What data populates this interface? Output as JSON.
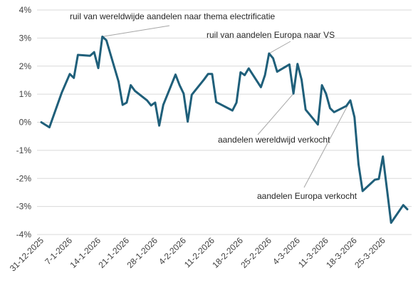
{
  "chart_data": {
    "type": "line",
    "title": "",
    "xlabel": "",
    "ylabel": "",
    "ylim": [
      -4,
      4
    ],
    "y_ticks": [
      4,
      3,
      2,
      1,
      0,
      -1,
      -2,
      -3,
      -4
    ],
    "y_tick_labels": [
      "4%",
      "3%",
      "2%",
      "1%",
      "0%",
      "-1%",
      "-2%",
      "-3%",
      "-4%"
    ],
    "x_ticks": [
      "31-12-2025",
      "7-1-2026",
      "14-1-2026",
      "21-1-2026",
      "28-1-2026",
      "4-2-2026",
      "11-2-2026",
      "18-2-2026",
      "25-2-2026",
      "4-3-2026",
      "11-3-2026",
      "18-3-2026",
      "25-3-2026"
    ],
    "grid": "horizontal",
    "line_color": "#1f5f7a",
    "series": [
      {
        "points": [
          [
            "2025-12-31",
            0.0
          ],
          [
            "2026-01-02",
            -0.18
          ],
          [
            "2026-01-05",
            1.05
          ],
          [
            "2026-01-07",
            1.72
          ],
          [
            "2026-01-08",
            1.58
          ],
          [
            "2026-01-09",
            2.4
          ],
          [
            "2026-01-12",
            2.37
          ],
          [
            "2026-01-13",
            2.5
          ],
          [
            "2026-01-14",
            1.93
          ],
          [
            "2026-01-15",
            3.05
          ],
          [
            "2026-01-16",
            2.92
          ],
          [
            "2026-01-19",
            1.45
          ],
          [
            "2026-01-20",
            0.62
          ],
          [
            "2026-01-21",
            0.7
          ],
          [
            "2026-01-22",
            1.32
          ],
          [
            "2026-01-23",
            1.12
          ],
          [
            "2026-01-26",
            0.78
          ],
          [
            "2026-01-27",
            0.6
          ],
          [
            "2026-01-28",
            0.7
          ],
          [
            "2026-01-29",
            -0.12
          ],
          [
            "2026-01-30",
            0.62
          ],
          [
            "2026-02-02",
            1.7
          ],
          [
            "2026-02-03",
            1.32
          ],
          [
            "2026-02-04",
            1.02
          ],
          [
            "2026-02-05",
            0.02
          ],
          [
            "2026-02-06",
            0.98
          ],
          [
            "2026-02-09",
            1.52
          ],
          [
            "2026-02-10",
            1.72
          ],
          [
            "2026-02-11",
            1.72
          ],
          [
            "2026-02-12",
            0.72
          ],
          [
            "2026-02-16",
            0.42
          ],
          [
            "2026-02-17",
            0.7
          ],
          [
            "2026-02-18",
            1.78
          ],
          [
            "2026-02-19",
            1.68
          ],
          [
            "2026-02-20",
            1.92
          ],
          [
            "2026-02-23",
            1.25
          ],
          [
            "2026-02-24",
            1.68
          ],
          [
            "2026-02-25",
            2.45
          ],
          [
            "2026-02-26",
            2.28
          ],
          [
            "2026-02-27",
            1.8
          ],
          [
            "2026-03-02",
            2.06
          ],
          [
            "2026-03-03",
            1.02
          ],
          [
            "2026-03-04",
            2.08
          ],
          [
            "2026-03-05",
            1.52
          ],
          [
            "2026-03-06",
            0.45
          ],
          [
            "2026-03-09",
            -0.08
          ],
          [
            "2026-03-10",
            1.32
          ],
          [
            "2026-03-11",
            1.02
          ],
          [
            "2026-03-12",
            0.5
          ],
          [
            "2026-03-13",
            0.36
          ],
          [
            "2026-03-16",
            0.58
          ],
          [
            "2026-03-17",
            0.78
          ],
          [
            "2026-03-18",
            0.18
          ],
          [
            "2026-03-19",
            -1.5
          ],
          [
            "2026-03-20",
            -2.45
          ],
          [
            "2026-03-23",
            -2.05
          ],
          [
            "2026-03-24",
            -2.02
          ],
          [
            "2026-03-25",
            -1.22
          ],
          [
            "2026-03-26",
            -2.38
          ],
          [
            "2026-03-27",
            -3.58
          ],
          [
            "2026-03-30",
            -2.95
          ],
          [
            "2026-03-31",
            -3.1
          ]
        ]
      }
    ],
    "annotations": [
      {
        "text": "ruil van wereldwijde aandelen naar thema electrificatie",
        "point": [
          "2026-01-15",
          3.05
        ]
      },
      {
        "text": "ruil van aandelen Europa naar VS",
        "point": [
          "2026-02-25",
          2.45
        ]
      },
      {
        "text": "aandelen wereldwijd verkocht",
        "point": [
          "2026-03-03",
          1.02
        ]
      },
      {
        "text": "aandelen Europa verkocht",
        "point": [
          "2026-03-17",
          0.78
        ]
      }
    ]
  }
}
